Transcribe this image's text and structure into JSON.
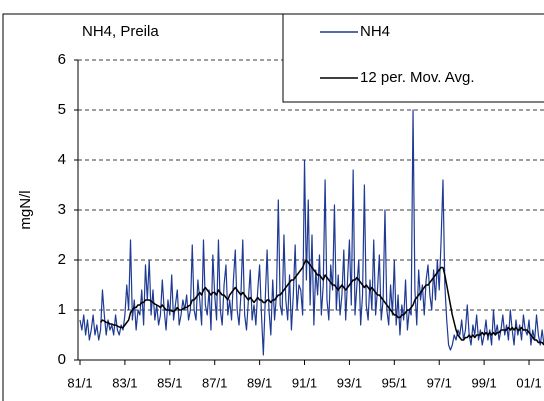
{
  "chart_data": {
    "type": "line",
    "title": "NH4, Preila",
    "y_label": "mgN/l",
    "categories": [
      "81/1",
      null,
      null,
      null,
      null,
      null,
      null,
      null,
      null,
      null,
      null,
      null,
      null,
      null,
      null,
      null,
      null,
      null,
      null,
      null,
      null,
      null,
      null,
      null,
      "83/1",
      null,
      null,
      null,
      null,
      null,
      null,
      null,
      null,
      null,
      null,
      null,
      null,
      null,
      null,
      null,
      null,
      null,
      null,
      null,
      null,
      null,
      null,
      null,
      "85/1",
      null,
      null,
      null,
      null,
      null,
      null,
      null,
      null,
      null,
      null,
      null,
      null,
      null,
      null,
      null,
      null,
      null,
      null,
      null,
      null,
      null,
      null,
      null,
      "87/1",
      null,
      null,
      null,
      null,
      null,
      null,
      null,
      null,
      null,
      null,
      null,
      null,
      null,
      null,
      null,
      null,
      null,
      null,
      null,
      null,
      null,
      null,
      null,
      "89/1",
      null,
      null,
      null,
      null,
      null,
      null,
      null,
      null,
      null,
      null,
      null,
      null,
      null,
      null,
      null,
      null,
      null,
      null,
      null,
      null,
      null,
      null,
      null,
      "91/1",
      null,
      null,
      null,
      null,
      null,
      null,
      null,
      null,
      null,
      null,
      null,
      null,
      null,
      null,
      null,
      null,
      null,
      null,
      null,
      null,
      null,
      null,
      null,
      "93/1",
      null,
      null,
      null,
      null,
      null,
      null,
      null,
      null,
      null,
      null,
      null,
      null,
      null,
      null,
      null,
      null,
      null,
      null,
      null,
      null,
      null,
      null,
      null,
      "95/1",
      null,
      null,
      null,
      null,
      null,
      null,
      null,
      null,
      null,
      null,
      null,
      null,
      null,
      null,
      null,
      null,
      null,
      null,
      null,
      null,
      null,
      null,
      null,
      "97/1",
      null,
      null,
      null,
      null,
      null,
      null,
      null,
      null,
      null,
      null,
      null,
      null,
      null,
      null,
      null,
      null,
      null,
      null,
      null,
      null,
      null,
      null,
      null,
      "99/1",
      null,
      null,
      null,
      null,
      null,
      null,
      null,
      null,
      null,
      null,
      null,
      null,
      null,
      null,
      null,
      null,
      null,
      null,
      null,
      null,
      null,
      null,
      null,
      "01/1",
      null,
      null,
      null,
      null,
      null,
      null,
      null,
      null
    ],
    "series": [
      {
        "name": "NH4",
        "color": "#1f3a93",
        "values": [
          0.8,
          0.6,
          0.9,
          0.5,
          0.8,
          0.4,
          0.6,
          0.9,
          0.5,
          0.7,
          0.4,
          0.6,
          1.4,
          0.9,
          0.5,
          0.8,
          0.6,
          0.7,
          0.5,
          0.9,
          0.6,
          0.5,
          0.7,
          0.6,
          0.9,
          1.5,
          1.0,
          2.4,
          0.8,
          1.2,
          0.6,
          1.0,
          0.9,
          1.4,
          0.7,
          1.9,
          1.2,
          2.0,
          0.9,
          1.4,
          0.8,
          1.1,
          0.7,
          0.9,
          1.6,
          1.0,
          0.6,
          1.2,
          0.9,
          1.7,
          0.8,
          1.1,
          1.4,
          0.7,
          0.9,
          1.2,
          1.0,
          1.3,
          0.8,
          1.0,
          2.3,
          1.0,
          0.8,
          1.6,
          1.2,
          0.7,
          2.4,
          1.1,
          0.9,
          1.4,
          0.6,
          2.1,
          1.3,
          0.8,
          2.4,
          1.0,
          0.7,
          1.5,
          1.9,
          0.9,
          1.2,
          0.8,
          1.6,
          2.2,
          1.0,
          0.7,
          1.3,
          2.4,
          0.9,
          0.6,
          1.2,
          1.8,
          0.8,
          1.1,
          0.7,
          1.4,
          1.9,
          0.9,
          0.1,
          1.2,
          2.2,
          1.0,
          0.5,
          1.6,
          0.8,
          1.3,
          3.2,
          1.1,
          0.9,
          2.5,
          1.2,
          0.8,
          1.7,
          0.6,
          1.3,
          2.3,
          1.0,
          1.5,
          1.4,
          0.9,
          4.0,
          1.6,
          3.2,
          1.1,
          2.5,
          0.7,
          1.8,
          1.3,
          2.1,
          0.9,
          1.5,
          3.6,
          1.2,
          0.8,
          1.9,
          1.4,
          3.1,
          1.0,
          1.7,
          0.9,
          1.3,
          2.2,
          0.8,
          1.6,
          2.4,
          1.1,
          3.8,
          0.9,
          1.5,
          2.0,
          0.7,
          1.3,
          3.5,
          1.1,
          0.8,
          1.6,
          1.0,
          2.4,
          0.9,
          1.4,
          2.1,
          0.8,
          1.2,
          3.0,
          1.0,
          0.7,
          1.5,
          0.9,
          2.0,
          0.7,
          1.3,
          0.5,
          1.1,
          0.8,
          1.6,
          0.6,
          1.0,
          0.9,
          5.0,
          1.4,
          0.7,
          1.8,
          1.2,
          1.5,
          0.9,
          1.6,
          1.9,
          1.3,
          1.0,
          1.8,
          1.2,
          2.0,
          1.4,
          2.4,
          3.6,
          1.5,
          0.8,
          0.3,
          0.2,
          0.3,
          0.5,
          0.4,
          0.6,
          0.5,
          0.8,
          0.4,
          0.6,
          1.1,
          0.5,
          0.3,
          0.7,
          0.5,
          0.9,
          0.4,
          0.6,
          0.3,
          0.5,
          0.8,
          0.4,
          0.6,
          0.3,
          1.0,
          0.5,
          0.7,
          0.4,
          0.6,
          0.9,
          0.5,
          0.7,
          0.4,
          1.0,
          0.6,
          0.3,
          0.8,
          0.5,
          0.7,
          0.4,
          0.9,
          0.6,
          0.5,
          0.8,
          0.3,
          0.6,
          0.4,
          0.9,
          0.5,
          0.3,
          0.6,
          0.3
        ]
      },
      {
        "name": "12 per. Mov. Avg.",
        "color": "#000000",
        "values": [
          null,
          null,
          null,
          null,
          null,
          null,
          null,
          null,
          null,
          null,
          null,
          0.75,
          0.8,
          0.78,
          0.75,
          0.75,
          0.72,
          0.72,
          0.7,
          0.7,
          0.68,
          0.66,
          0.65,
          0.65,
          0.7,
          0.75,
          0.8,
          0.95,
          1.0,
          1.05,
          1.05,
          1.1,
          1.1,
          1.15,
          1.15,
          1.2,
          1.2,
          1.2,
          1.18,
          1.15,
          1.12,
          1.1,
          1.08,
          1.05,
          1.1,
          1.05,
          1.0,
          1.0,
          1.0,
          0.98,
          0.97,
          1.0,
          1.05,
          1.0,
          1.0,
          1.02,
          1.05,
          1.05,
          1.08,
          1.1,
          1.2,
          1.2,
          1.25,
          1.3,
          1.35,
          1.3,
          1.4,
          1.45,
          1.4,
          1.35,
          1.3,
          1.35,
          1.35,
          1.3,
          1.4,
          1.35,
          1.3,
          1.3,
          1.25,
          1.2,
          1.3,
          1.35,
          1.4,
          1.45,
          1.4,
          1.35,
          1.3,
          1.35,
          1.3,
          1.25,
          1.2,
          1.25,
          1.2,
          1.15,
          1.2,
          1.25,
          1.2,
          1.2,
          1.15,
          1.15,
          1.2,
          1.2,
          1.15,
          1.2,
          1.2,
          1.25,
          1.3,
          1.3,
          1.35,
          1.4,
          1.45,
          1.5,
          1.55,
          1.6,
          1.6,
          1.65,
          1.7,
          1.75,
          1.8,
          1.85,
          1.95,
          2.0,
          1.95,
          1.9,
          1.85,
          1.8,
          1.75,
          1.7,
          1.7,
          1.65,
          1.6,
          1.7,
          1.65,
          1.6,
          1.55,
          1.5,
          1.5,
          1.45,
          1.4,
          1.45,
          1.5,
          1.45,
          1.4,
          1.45,
          1.5,
          1.55,
          1.6,
          1.6,
          1.65,
          1.6,
          1.55,
          1.5,
          1.45,
          1.5,
          1.45,
          1.4,
          1.45,
          1.4,
          1.35,
          1.3,
          1.3,
          1.25,
          1.2,
          1.15,
          1.1,
          1.05,
          1.0,
          0.95,
          0.9,
          0.9,
          0.85,
          0.85,
          0.9,
          0.9,
          0.95,
          1.0,
          1.0,
          1.05,
          1.1,
          1.2,
          1.25,
          1.3,
          1.35,
          1.4,
          1.45,
          1.5,
          1.5,
          1.55,
          1.6,
          1.65,
          1.7,
          1.75,
          1.8,
          1.85,
          1.85,
          1.7,
          1.5,
          1.3,
          1.1,
          0.9,
          0.75,
          0.6,
          0.5,
          0.45,
          0.4,
          0.4,
          0.45,
          0.45,
          0.5,
          0.45,
          0.5,
          0.45,
          0.5,
          0.5,
          0.5,
          0.55,
          0.5,
          0.55,
          0.5,
          0.55,
          0.5,
          0.55,
          0.5,
          0.55,
          0.55,
          0.6,
          0.6,
          0.6,
          0.6,
          0.65,
          0.6,
          0.65,
          0.6,
          0.65,
          0.6,
          0.6,
          0.65,
          0.6,
          0.6,
          0.6,
          0.55,
          0.5,
          0.45,
          0.4,
          0.4,
          0.35,
          0.35,
          0.35,
          0.3
        ]
      }
    ],
    "ylim": [
      0,
      6
    ],
    "yticks": [
      0,
      1,
      2,
      3,
      4,
      5,
      6
    ],
    "grid": true
  }
}
